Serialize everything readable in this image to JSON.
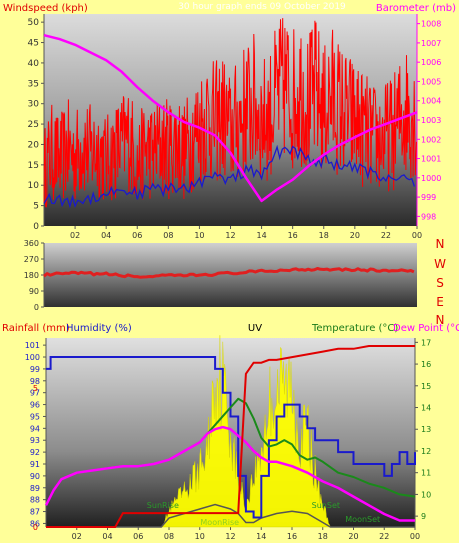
{
  "colors": {
    "background": "#ffff99",
    "windspeed": "#ff0000",
    "wind_avg": "#1a1acc",
    "barometer": "#ff00ff",
    "direction": "#e02020",
    "rainfall": "#e00000",
    "humidity": "#1a1acc",
    "temperature": "#1a8a1a",
    "dewpoint": "#ff00ff",
    "uv": "#ffff00",
    "solar": "#555555",
    "axis_text_dark": "#333333",
    "axis_text_red": "#e00000",
    "axis_text_pink": "#ff00ff",
    "axis_text_green": "#1a7a1a",
    "axis_text_blue": "#1a1acc"
  },
  "chart_data": [
    {
      "type": "line",
      "panel": "wind-barometer",
      "title": "30 hour graph ends 09 October 2019",
      "ylabel_left": "Windspeed (kph)",
      "ylabel_right": "Barometer (mb)",
      "xticks": [
        "02",
        "04",
        "06",
        "08",
        "10",
        "12",
        "14",
        "16",
        "18",
        "20",
        "22",
        "00"
      ],
      "yticks_left": [
        0,
        5,
        10,
        15,
        20,
        25,
        30,
        35,
        40,
        45,
        50
      ],
      "yticks_right": [
        998,
        999,
        1000,
        1001,
        1002,
        1003,
        1004,
        1005,
        1006,
        1007,
        1008
      ],
      "xlim": [
        0,
        24
      ],
      "ylim_left": [
        0,
        52
      ],
      "ylim_right": [
        997.5,
        1008.5
      ],
      "grid": false,
      "series": [
        {
          "name": "Windspeed",
          "axis": "left",
          "x": [
            0,
            0.5,
            1,
            1.5,
            2,
            2.5,
            3,
            3.5,
            4,
            4.5,
            5,
            5.5,
            6,
            6.5,
            7,
            7.5,
            8,
            8.5,
            9,
            9.5,
            10,
            10.5,
            11,
            11.5,
            12,
            12.5,
            13,
            13.5,
            14,
            14.5,
            15,
            15.5,
            16,
            16.5,
            17,
            17.5,
            18,
            18.5,
            19,
            19.5,
            20,
            20.5,
            21,
            21.5,
            22,
            22.5,
            23,
            23.5,
            24
          ],
          "values": [
            14,
            18,
            16,
            19,
            17,
            20,
            18,
            19,
            16,
            18,
            20,
            22,
            15,
            19,
            18,
            20,
            19,
            21,
            18,
            22,
            24,
            27,
            25,
            27,
            23,
            26,
            29,
            30,
            26,
            27,
            32,
            35,
            31,
            34,
            30,
            33,
            28,
            32,
            29,
            27,
            26,
            24,
            22,
            21,
            22,
            23,
            27,
            29,
            25
          ]
        },
        {
          "name": "Wind average",
          "axis": "left",
          "x": [
            0,
            1,
            2,
            3,
            4,
            5,
            6,
            7,
            8,
            9,
            10,
            11,
            12,
            13,
            14,
            15,
            16,
            17,
            18,
            19,
            20,
            21,
            22,
            23,
            24
          ],
          "values": [
            7,
            6,
            6,
            7,
            8,
            9,
            8,
            9,
            9,
            9,
            11,
            12,
            11,
            14,
            12,
            18,
            19,
            16,
            16,
            15,
            14,
            13,
            12,
            12,
            11
          ]
        },
        {
          "name": "Barometer",
          "axis": "right",
          "x": [
            0,
            1,
            2,
            3,
            4,
            5,
            6,
            7,
            8,
            9,
            10,
            11,
            12,
            13,
            14,
            15,
            16,
            17,
            18,
            19,
            20,
            21,
            22,
            23,
            24
          ],
          "values": [
            1007.4,
            1007.2,
            1006.9,
            1006.5,
            1006.1,
            1005.5,
            1004.7,
            1004,
            1003.4,
            1002.9,
            1002.6,
            1002.2,
            1001.3,
            1000,
            998.8,
            999.4,
            999.9,
            1000.6,
            1001.2,
            1001.7,
            1002.1,
            1002.5,
            1002.8,
            1003.1,
            1003.4
          ]
        }
      ]
    },
    {
      "type": "line",
      "panel": "wind-direction",
      "xticks": [
        "02",
        "04",
        "06",
        "08",
        "10",
        "12",
        "14",
        "16",
        "18",
        "20",
        "22",
        "00"
      ],
      "yticks_left": [
        0,
        90,
        180,
        270,
        360
      ],
      "yticks_right": [
        "N",
        "W",
        "S",
        "E",
        "N"
      ],
      "xlim": [
        0,
        24
      ],
      "ylim": [
        0,
        360
      ],
      "series": [
        {
          "name": "Direction",
          "x": [
            0,
            2,
            4,
            6,
            8,
            10,
            12,
            14,
            16,
            18,
            20,
            22,
            24
          ],
          "values": [
            180,
            190,
            185,
            170,
            175,
            180,
            190,
            200,
            210,
            215,
            210,
            205,
            200
          ]
        }
      ]
    },
    {
      "type": "line",
      "panel": "rain-humidity-uv-temperature",
      "title": "UV",
      "ylabel_left_rain": "Rainfall (mm)",
      "ylabel_left_humidity": "Humidity (%)",
      "ylabel_right_temperature": "Temperature (°C)",
      "ylabel_right_dewpoint": "Dew Point (°C)",
      "xticks": [
        "02",
        "04",
        "06",
        "08",
        "10",
        "12",
        "14",
        "16",
        "18",
        "20",
        "22",
        "00"
      ],
      "yticks_humidity": [
        86,
        87,
        88,
        89,
        90,
        91,
        92,
        93,
        94,
        95,
        96,
        97,
        98,
        99,
        100,
        101
      ],
      "yticks_rain": [
        0,
        5
      ],
      "yticks_temperature": [
        9,
        10,
        11,
        12,
        13,
        14,
        15,
        16,
        17
      ],
      "xlim": [
        0,
        24
      ],
      "ylim_humidity": [
        85.7,
        101.6
      ],
      "ylim_temperature": [
        8.5,
        17.2
      ],
      "ylim_rain": [
        0,
        6.5
      ],
      "annotations": [
        "SunRise",
        "SunSet",
        "MoonRise",
        "MoonSet"
      ],
      "series": [
        {
          "name": "Rainfall",
          "axis": "rain",
          "x": [
            0,
            4.5,
            5,
            5.5,
            12.5,
            13,
            13.5,
            14,
            14.5,
            15,
            16,
            17,
            18,
            19,
            20,
            21,
            22,
            23,
            24
          ],
          "values": [
            0,
            0,
            0.5,
            0.5,
            0.5,
            5.5,
            5.9,
            5.9,
            6,
            6,
            6.1,
            6.2,
            6.3,
            6.4,
            6.4,
            6.5,
            6.5,
            6.5,
            6.5
          ]
        },
        {
          "name": "Humidity",
          "axis": "humidity",
          "x": [
            0,
            0.3,
            1,
            2,
            3,
            4,
            5,
            6,
            7,
            8,
            9,
            10,
            10.5,
            11,
            11.5,
            12,
            12.5,
            13,
            13.5,
            14,
            14.5,
            15,
            15.5,
            16,
            16.5,
            17,
            17.5,
            18,
            18.5,
            19,
            20,
            21,
            22,
            22.5,
            23,
            23.5,
            24
          ],
          "values": [
            99,
            100,
            100,
            100,
            100,
            100,
            100,
            100,
            100,
            100,
            100,
            100,
            100,
            99,
            97,
            95,
            90,
            87,
            86.5,
            90,
            93,
            95,
            96,
            96,
            95,
            94,
            93,
            93,
            93,
            92,
            91,
            91,
            90,
            91,
            92,
            91,
            92
          ]
        },
        {
          "name": "Temperature",
          "axis": "temperature",
          "x": [
            0,
            0.5,
            1,
            2,
            3,
            4,
            5,
            6,
            7,
            8,
            9,
            10,
            10.5,
            11,
            11.5,
            12,
            12.5,
            13,
            13.5,
            14,
            14.5,
            15,
            15.5,
            16,
            16.5,
            17,
            17.5,
            18,
            19,
            20,
            21,
            22,
            23,
            24
          ],
          "values": [
            9.5,
            10.2,
            10.7,
            11,
            11.1,
            11.2,
            11.3,
            11.3,
            11.4,
            11.6,
            12,
            12.4,
            12.8,
            13.2,
            13.6,
            14,
            14.4,
            14.2,
            13.5,
            12.6,
            12.2,
            12.3,
            12.5,
            12.3,
            11.8,
            11.6,
            11.7,
            11.5,
            11,
            10.8,
            10.5,
            10.3,
            10,
            9.9
          ]
        },
        {
          "name": "Dew Point",
          "axis": "temperature",
          "x": [
            0,
            0.5,
            1,
            2,
            3,
            4,
            5,
            6,
            7,
            8,
            9,
            10,
            10.5,
            11,
            11.5,
            12,
            12.5,
            13,
            13.5,
            14,
            14.5,
            15,
            16,
            17,
            18,
            19,
            20,
            21,
            22,
            23,
            24
          ],
          "values": [
            9.5,
            10.2,
            10.7,
            11,
            11.1,
            11.2,
            11.3,
            11.3,
            11.4,
            11.6,
            12,
            12.4,
            12.8,
            13,
            13.1,
            13,
            12.7,
            12.4,
            12,
            11.7,
            11.5,
            11.5,
            11.3,
            11,
            10.6,
            10.3,
            9.9,
            9.5,
            9.1,
            8.8,
            8.8
          ]
        },
        {
          "name": "UV",
          "axis": "uv",
          "x": [
            0,
            7.5,
            8,
            8.5,
            9,
            9.5,
            10,
            10.5,
            11,
            11.5,
            12,
            12.5,
            13,
            13.5,
            14,
            14.5,
            15,
            15.5,
            16,
            16.5,
            17,
            17.5,
            18,
            18.5,
            24
          ],
          "values": [
            0,
            0,
            0.4,
            0.7,
            0.9,
            1.2,
            1.5,
            2.0,
            4.0,
            3.8,
            2.5,
            1.2,
            0.6,
            1.3,
            2.0,
            3.2,
            3.6,
            3.7,
            3.6,
            2.3,
            2.6,
            1.4,
            0.6,
            0,
            0
          ]
        },
        {
          "name": "Solar",
          "axis": "uv",
          "x": [
            0,
            7.5,
            8,
            9,
            10,
            11,
            12,
            12.5,
            13,
            13.5,
            14,
            15,
            16,
            17,
            17.5,
            18,
            18.5,
            24
          ],
          "values": [
            0,
            0,
            0.2,
            0.3,
            0.4,
            0.5,
            0.4,
            0.3,
            0.1,
            0.1,
            0.2,
            0.3,
            0.35,
            0.3,
            0.2,
            0.1,
            0,
            0
          ]
        }
      ]
    }
  ]
}
